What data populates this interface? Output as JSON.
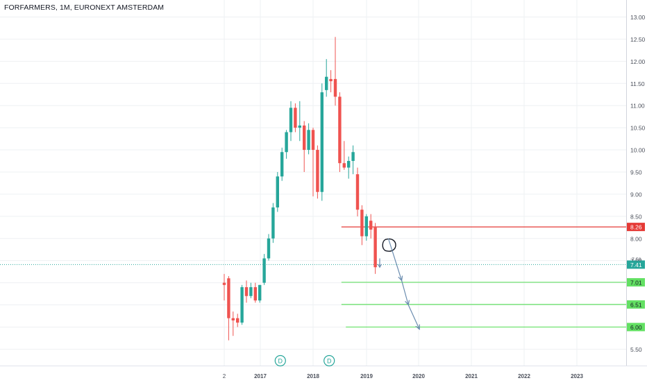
{
  "chart_data": {
    "type": "candlestick",
    "title": "FORFARMERS, 1M, EURONEXT AMSTERDAM",
    "colors": {
      "up": "#26a69a",
      "down": "#ef5350",
      "target": "#63e063",
      "resistance": "#e53935",
      "current": "#26a69a",
      "arrow": "#6a8caf",
      "grid": "#eef0f3"
    },
    "ylim": [
      5.3,
      13.2
    ],
    "y_ticks": [
      "5.50",
      "6.00",
      "6.50",
      "7.00",
      "7.50",
      "8.00",
      "8.50",
      "9.00",
      "9.50",
      "10.00",
      "10.50",
      "11.00",
      "11.50",
      "12.00",
      "12.50",
      "13.00"
    ],
    "x_ticks": [
      "2",
      "2017",
      "2018",
      "2019",
      "2020",
      "2021",
      "2022",
      "2023"
    ],
    "candles": [
      {
        "t": 0,
        "o": 7.0,
        "h": 7.2,
        "l": 6.6,
        "c": 6.95
      },
      {
        "t": 1,
        "o": 7.1,
        "h": 7.15,
        "l": 5.7,
        "c": 6.2
      },
      {
        "t": 2,
        "o": 6.2,
        "h": 6.35,
        "l": 5.8,
        "c": 6.15
      },
      {
        "t": 3,
        "o": 6.2,
        "h": 6.3,
        "l": 6.0,
        "c": 6.1
      },
      {
        "t": 4,
        "o": 6.1,
        "h": 6.95,
        "l": 6.05,
        "c": 6.9
      },
      {
        "t": 5,
        "o": 6.9,
        "h": 7.05,
        "l": 6.55,
        "c": 6.7
      },
      {
        "t": 6,
        "o": 6.7,
        "h": 7.0,
        "l": 6.65,
        "c": 6.9
      },
      {
        "t": 7,
        "o": 6.9,
        "h": 7.0,
        "l": 6.55,
        "c": 6.6
      },
      {
        "t": 8,
        "o": 6.6,
        "h": 6.95,
        "l": 6.55,
        "c": 6.95
      },
      {
        "t": 9,
        "o": 7.0,
        "h": 7.65,
        "l": 6.95,
        "c": 7.55
      },
      {
        "t": 10,
        "o": 7.55,
        "h": 8.1,
        "l": 7.5,
        "c": 8.0
      },
      {
        "t": 11,
        "o": 8.0,
        "h": 8.8,
        "l": 7.9,
        "c": 8.7
      },
      {
        "t": 12,
        "o": 8.7,
        "h": 9.5,
        "l": 8.6,
        "c": 9.4
      },
      {
        "t": 13,
        "o": 9.4,
        "h": 10.05,
        "l": 9.3,
        "c": 9.95
      },
      {
        "t": 14,
        "o": 9.95,
        "h": 10.45,
        "l": 9.8,
        "c": 10.4
      },
      {
        "t": 15,
        "o": 10.4,
        "h": 11.1,
        "l": 10.2,
        "c": 10.95
      },
      {
        "t": 16,
        "o": 10.95,
        "h": 11.05,
        "l": 10.4,
        "c": 10.5
      },
      {
        "t": 17,
        "o": 10.5,
        "h": 11.1,
        "l": 10.2,
        "c": 10.55
      },
      {
        "t": 18,
        "o": 10.55,
        "h": 10.65,
        "l": 9.5,
        "c": 10.0
      },
      {
        "t": 19,
        "o": 10.0,
        "h": 10.6,
        "l": 9.9,
        "c": 10.45
      },
      {
        "t": 20,
        "o": 10.45,
        "h": 10.5,
        "l": 8.95,
        "c": 10.0
      },
      {
        "t": 21,
        "o": 10.0,
        "h": 10.1,
        "l": 8.9,
        "c": 9.05
      },
      {
        "t": 22,
        "o": 9.05,
        "h": 11.5,
        "l": 8.85,
        "c": 11.3
      },
      {
        "t": 23,
        "o": 11.35,
        "h": 12.05,
        "l": 11.2,
        "c": 11.65
      },
      {
        "t": 24,
        "o": 11.6,
        "h": 11.8,
        "l": 11.3,
        "c": 11.55
      },
      {
        "t": 25,
        "o": 11.6,
        "h": 12.55,
        "l": 11.0,
        "c": 11.2
      },
      {
        "t": 26,
        "o": 11.2,
        "h": 11.3,
        "l": 9.5,
        "c": 9.7
      },
      {
        "t": 27,
        "o": 9.7,
        "h": 10.2,
        "l": 9.55,
        "c": 9.6
      },
      {
        "t": 28,
        "o": 9.6,
        "h": 9.85,
        "l": 9.35,
        "c": 9.75
      },
      {
        "t": 29,
        "o": 9.75,
        "h": 10.1,
        "l": 9.45,
        "c": 9.95
      },
      {
        "t": 30,
        "o": 9.45,
        "h": 9.6,
        "l": 8.5,
        "c": 8.65
      },
      {
        "t": 31,
        "o": 8.65,
        "h": 8.75,
        "l": 7.85,
        "c": 8.05
      },
      {
        "t": 32,
        "o": 8.05,
        "h": 8.55,
        "l": 7.95,
        "c": 8.5
      },
      {
        "t": 33,
        "o": 8.4,
        "h": 8.55,
        "l": 8.0,
        "c": 8.2
      },
      {
        "t": 34,
        "o": 8.25,
        "h": 8.35,
        "l": 7.2,
        "c": 7.35
      }
    ],
    "hlines": [
      {
        "value": 8.26,
        "label": "8.26",
        "color": "#e53935",
        "from_t": 27
      },
      {
        "value": 7.01,
        "label": "7.01",
        "color": "#63e063",
        "from_t": 27
      },
      {
        "value": 6.51,
        "label": "6.51",
        "color": "#63e063",
        "from_t": 27
      },
      {
        "value": 6.0,
        "label": "6.00",
        "color": "#63e063",
        "from_t": 28
      }
    ],
    "current_price": {
      "value": 7.41,
      "label": "7.41",
      "color": "#26a69a"
    },
    "hidden_tick_label": "7.50",
    "dividend_markers": [
      {
        "t": 12,
        "label": "D"
      },
      {
        "t": 23,
        "label": "D"
      }
    ],
    "drawing": {
      "loop": {
        "t": 35,
        "value": 7.85
      },
      "arrow_path": [
        [
          36,
          8.0
        ],
        [
          39,
          7.05
        ],
        [
          40.5,
          6.5
        ],
        [
          43,
          5.95
        ]
      ]
    }
  }
}
